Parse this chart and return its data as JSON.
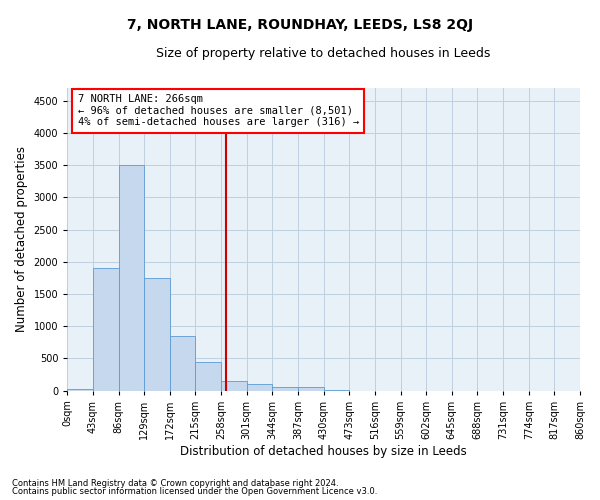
{
  "title": "7, NORTH LANE, ROUNDHAY, LEEDS, LS8 2QJ",
  "subtitle": "Size of property relative to detached houses in Leeds",
  "xlabel": "Distribution of detached houses by size in Leeds",
  "ylabel": "Number of detached properties",
  "footnote1": "Contains HM Land Registry data © Crown copyright and database right 2024.",
  "footnote2": "Contains public sector information licensed under the Open Government Licence v3.0.",
  "bar_color": "#c5d8ed",
  "bar_edge_color": "#5b9bd5",
  "annotation_line1": "7 NORTH LANE: 266sqm",
  "annotation_line2": "← 96% of detached houses are smaller (8,501)",
  "annotation_line3": "4% of semi-detached houses are larger (316) →",
  "vline_x": 266,
  "vline_color": "#cc0000",
  "bin_edges": [
    0,
    43,
    86,
    129,
    172,
    215,
    258,
    301,
    344,
    387,
    430,
    473,
    516,
    559,
    602,
    645,
    688,
    731,
    774,
    817,
    860
  ],
  "bin_counts": [
    30,
    1900,
    3500,
    1750,
    850,
    450,
    150,
    100,
    60,
    50,
    10,
    0,
    0,
    0,
    0,
    0,
    0,
    0,
    0,
    0
  ],
  "ylim": [
    0,
    4700
  ],
  "yticks": [
    0,
    500,
    1000,
    1500,
    2000,
    2500,
    3000,
    3500,
    4000,
    4500
  ],
  "bg_color": "#ffffff",
  "plot_bg_color": "#e8f0f8",
  "grid_color": "#c0cfe0",
  "title_fontsize": 10,
  "subtitle_fontsize": 9,
  "axis_label_fontsize": 8.5,
  "tick_fontsize": 7,
  "annotation_fontsize": 7.5,
  "footnote_fontsize": 6
}
